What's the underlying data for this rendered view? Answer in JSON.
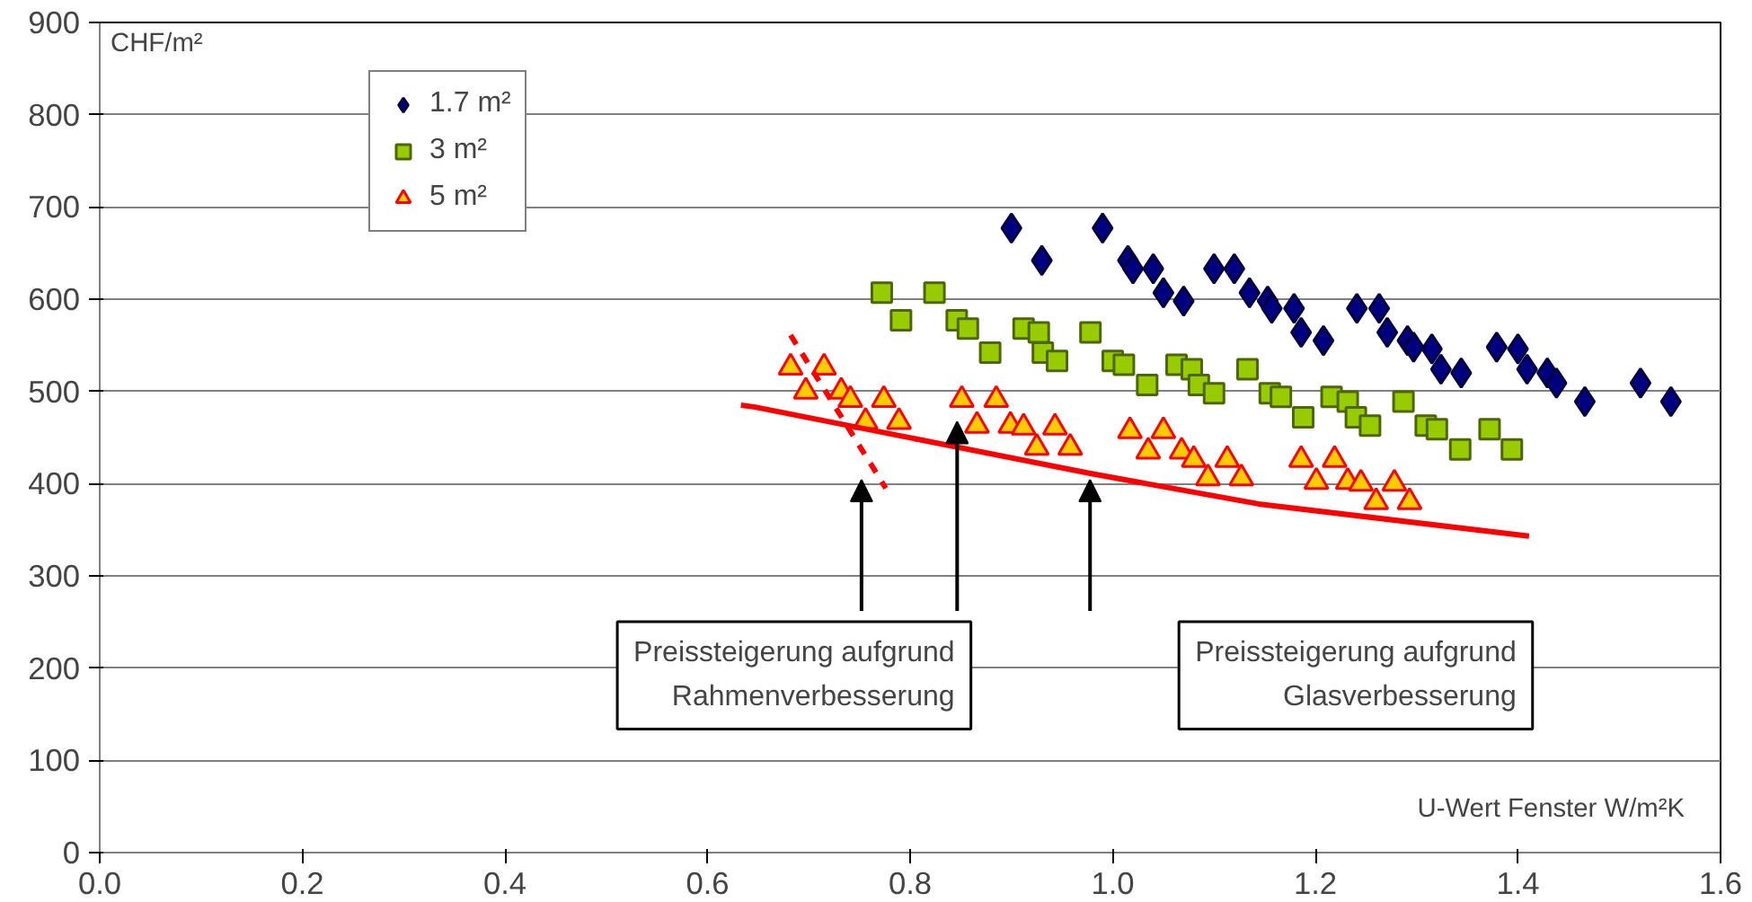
{
  "chart_data": {
    "type": "scatter",
    "xlabel": "U-Wert Fenster W/m²K",
    "ylabel": "CHF/m²",
    "xlim": [
      0,
      1.6
    ],
    "ylim": [
      0,
      900
    ],
    "xticks": [
      {
        "value": 0,
        "label": "0.0"
      },
      {
        "value": 0.2,
        "label": "0.2"
      },
      {
        "value": 0.4,
        "label": "0.4"
      },
      {
        "value": 0.6,
        "label": "0.6"
      },
      {
        "value": 0.8,
        "label": "0.8"
      },
      {
        "value": 1.0,
        "label": "1.0"
      },
      {
        "value": 1.2,
        "label": "1.2"
      },
      {
        "value": 1.4,
        "label": "1.4"
      },
      {
        "value": 1.6,
        "label": "1.6"
      }
    ],
    "yticks": [
      0,
      100,
      200,
      300,
      400,
      500,
      600,
      700,
      800,
      900
    ],
    "grid": "y",
    "legend": "top left",
    "series": [
      {
        "name": "1.7 m²",
        "color": "#000080",
        "marker": "diamond",
        "x": [
          0.9,
          0.93,
          0.99,
          1.015,
          1.02,
          1.04,
          1.05,
          1.07,
          1.1,
          1.12,
          1.135,
          1.153,
          1.157,
          1.179,
          1.186,
          1.208,
          1.241,
          1.263,
          1.271,
          1.291,
          1.297,
          1.315,
          1.324,
          1.344,
          1.379,
          1.4,
          1.409,
          1.429,
          1.438,
          1.466,
          1.521,
          1.551
        ],
        "values": [
          677,
          642,
          677,
          642,
          633,
          633,
          607,
          598,
          633,
          633,
          607,
          598,
          590,
          590,
          564,
          555,
          590,
          590,
          564,
          555,
          548,
          546,
          524,
          520,
          548,
          546,
          524,
          520,
          509,
          489,
          509,
          489
        ]
      },
      {
        "name": "3 m²",
        "color": "#99cc00",
        "marker": "square",
        "x": [
          0.772,
          0.824,
          0.791,
          0.846,
          0.857,
          0.879,
          0.912,
          0.927,
          0.931,
          0.945,
          0.978,
          1.0,
          1.011,
          1.034,
          1.063,
          1.078,
          1.085,
          1.1,
          1.133,
          1.155,
          1.166,
          1.188,
          1.216,
          1.232,
          1.24,
          1.254,
          1.287,
          1.309,
          1.32,
          1.343,
          1.372,
          1.394
        ],
        "values": [
          607,
          607,
          577,
          577,
          568,
          542,
          568,
          564,
          542,
          533,
          564,
          533,
          529,
          507,
          529,
          524,
          507,
          498,
          524,
          498,
          494,
          472,
          494,
          489,
          472,
          463,
          489,
          463,
          459,
          437,
          459,
          437
        ]
      },
      {
        "name": "5 m²",
        "color": "#ffcc00",
        "marker": "triangle",
        "x": [
          0.682,
          0.715,
          0.697,
          0.732,
          0.741,
          0.756,
          0.774,
          0.789,
          0.851,
          0.885,
          0.866,
          0.899,
          0.912,
          0.925,
          0.943,
          0.958,
          1.017,
          1.05,
          1.035,
          1.068,
          1.08,
          1.094,
          1.113,
          1.127,
          1.186,
          1.219,
          1.201,
          1.232,
          1.245,
          1.26,
          1.278,
          1.293
        ],
        "values": [
          526,
          526,
          500,
          500,
          491,
          467,
          491,
          467,
          491,
          491,
          463,
          463,
          461,
          439,
          461,
          439,
          457,
          457,
          435,
          435,
          426,
          406,
          426,
          406,
          426,
          426,
          402,
          402,
          400,
          380,
          400,
          380
        ]
      },
      {
        "type": "line",
        "color": "#ff0000",
        "line_style": "solid",
        "x": [
          0.633,
          0.647,
          0.978,
          1.144,
          1.411
        ],
        "values": [
          485,
          483,
          411,
          378,
          343
        ]
      },
      {
        "type": "line",
        "color": "#ff0000",
        "line_style": "dashed",
        "x": [
          0.682,
          0.776
        ],
        "values": [
          561,
          395
        ]
      }
    ],
    "annotations": [
      "Preissteigerung aufgrund\nRahmenverbesserung",
      "Preissteigerung aufgrund\nGlasverbesserung"
    ]
  }
}
